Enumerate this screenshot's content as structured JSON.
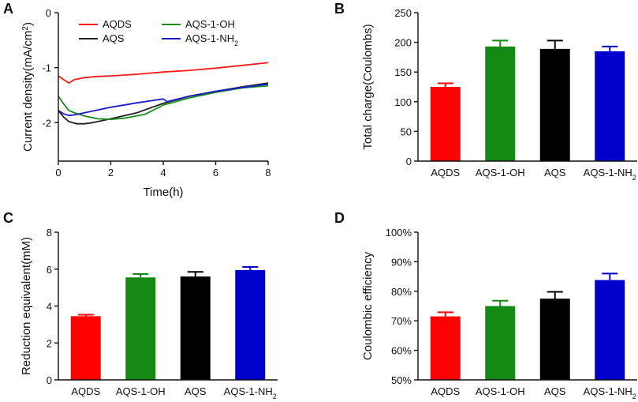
{
  "chart_data": [
    {
      "panel": "A",
      "type": "line",
      "xlabel": "Time(h)",
      "ylabel": "Current density(mA/cm²)",
      "ylabel_parts": [
        "Current density(mA/cm",
        "2",
        ")"
      ],
      "xlim": [
        0,
        8
      ],
      "ylim": [
        -2.7,
        0
      ],
      "xticks": [
        "0",
        "2",
        "4",
        "6",
        "8"
      ],
      "yticks": [
        "0",
        "-1",
        "-2"
      ],
      "xtick_values": [
        0,
        2,
        4,
        6,
        8
      ],
      "ytick_values": [
        0,
        -1,
        -2
      ],
      "legend": [
        {
          "label": "AQDS",
          "color": "#ff1a1a"
        },
        {
          "label": "AQS",
          "color": "#222222"
        },
        {
          "label": "AQS-1-OH",
          "color": "#1a8a1a"
        },
        {
          "label": "AQS-1-NH",
          "sub": "2",
          "color": "#1a1acc"
        }
      ],
      "series": [
        {
          "name": "AQDS",
          "color": "#ff1a1a",
          "x": [
            0,
            0.2,
            0.4,
            0.6,
            0.8,
            1.0,
            1.5,
            2,
            3,
            4,
            5,
            6,
            7,
            8
          ],
          "y": [
            -1.15,
            -1.22,
            -1.28,
            -1.22,
            -1.2,
            -1.18,
            -1.16,
            -1.15,
            -1.12,
            -1.08,
            -1.05,
            -1.01,
            -0.96,
            -0.91
          ]
        },
        {
          "name": "AQS",
          "color": "#222222",
          "x": [
            0,
            0.2,
            0.4,
            0.7,
            1.0,
            1.3,
            1.6,
            2,
            3,
            4,
            5,
            6,
            7,
            8
          ],
          "y": [
            -1.78,
            -1.9,
            -1.98,
            -2.02,
            -2.02,
            -2.0,
            -1.97,
            -1.93,
            -1.82,
            -1.65,
            -1.52,
            -1.43,
            -1.35,
            -1.28
          ]
        },
        {
          "name": "AQS-1-OH",
          "color": "#1a8a1a",
          "x": [
            0,
            0.2,
            0.4,
            0.6,
            1.0,
            1.5,
            2,
            2.5,
            3.3,
            4,
            5,
            6,
            7,
            8
          ],
          "y": [
            -1.52,
            -1.66,
            -1.78,
            -1.82,
            -1.88,
            -1.93,
            -1.94,
            -1.92,
            -1.85,
            -1.68,
            -1.55,
            -1.45,
            -1.37,
            -1.33
          ]
        },
        {
          "name": "AQS-1-NH2",
          "color": "#1a1acc",
          "x": [
            0,
            0.2,
            0.4,
            0.6,
            1.0,
            1.5,
            2,
            3,
            4,
            4.15,
            4.3,
            5,
            6,
            7,
            8
          ],
          "y": [
            -1.78,
            -1.84,
            -1.87,
            -1.86,
            -1.82,
            -1.77,
            -1.72,
            -1.64,
            -1.57,
            -1.62,
            -1.6,
            -1.52,
            -1.43,
            -1.36,
            -1.3
          ]
        }
      ]
    },
    {
      "panel": "B",
      "type": "bar",
      "ylabel": "Total charge(Coulombs)",
      "ylim": [
        0,
        250
      ],
      "yticks": [
        "0",
        "50",
        "100",
        "150",
        "200",
        "250"
      ],
      "ytick_values": [
        0,
        50,
        100,
        150,
        200,
        250
      ],
      "categories": [
        "AQDS",
        "AQS-1-OH",
        "AQS",
        "AQS-1-NH2"
      ],
      "category_labels": [
        {
          "text": "AQDS"
        },
        {
          "text": "AQS-1-OH"
        },
        {
          "text": "AQS"
        },
        {
          "text": "AQS-1-NH",
          "sub": "2"
        }
      ],
      "values": [
        125,
        193,
        189,
        185
      ],
      "errors": [
        6,
        10,
        14,
        8
      ],
      "colors": [
        "#ff0000",
        "#138a13",
        "#000000",
        "#0000cc"
      ]
    },
    {
      "panel": "C",
      "type": "bar",
      "ylabel": "Reduction equivalent(mM)",
      "ylim": [
        0,
        8
      ],
      "yticks": [
        "0",
        "2",
        "4",
        "6",
        "8"
      ],
      "ytick_values": [
        0,
        2,
        4,
        6,
        8
      ],
      "categories": [
        "AQDS",
        "AQS-1-OH",
        "AQS",
        "AQS-1-NH2"
      ],
      "category_labels": [
        {
          "text": "AQDS"
        },
        {
          "text": "AQS-1-OH"
        },
        {
          "text": "AQS"
        },
        {
          "text": "AQS-1-NH",
          "sub": "2"
        }
      ],
      "values": [
        3.45,
        5.55,
        5.6,
        5.95
      ],
      "errors": [
        0.08,
        0.18,
        0.25,
        0.17
      ],
      "colors": [
        "#ff0000",
        "#138a13",
        "#000000",
        "#0000cc"
      ]
    },
    {
      "panel": "D",
      "type": "bar",
      "ylabel": "Coulombic efficiency",
      "ylim": [
        50,
        100
      ],
      "yticks": [
        "50%",
        "60%",
        "70%",
        "80%",
        "90%",
        "100%"
      ],
      "ytick_values": [
        50,
        60,
        70,
        80,
        90,
        100
      ],
      "categories": [
        "AQDS",
        "AQS-1-OH",
        "AQS",
        "AQS-1-NH2"
      ],
      "category_labels": [
        {
          "text": "AQDS"
        },
        {
          "text": "AQS-1-OH"
        },
        {
          "text": "AQS"
        },
        {
          "text": "AQS-1-NH",
          "sub": "2"
        }
      ],
      "values": [
        71.5,
        75,
        77.5,
        83.8
      ],
      "errors": [
        1.4,
        1.8,
        2.3,
        2.2
      ],
      "colors": [
        "#ff0000",
        "#138a13",
        "#000000",
        "#0000cc"
      ]
    }
  ]
}
